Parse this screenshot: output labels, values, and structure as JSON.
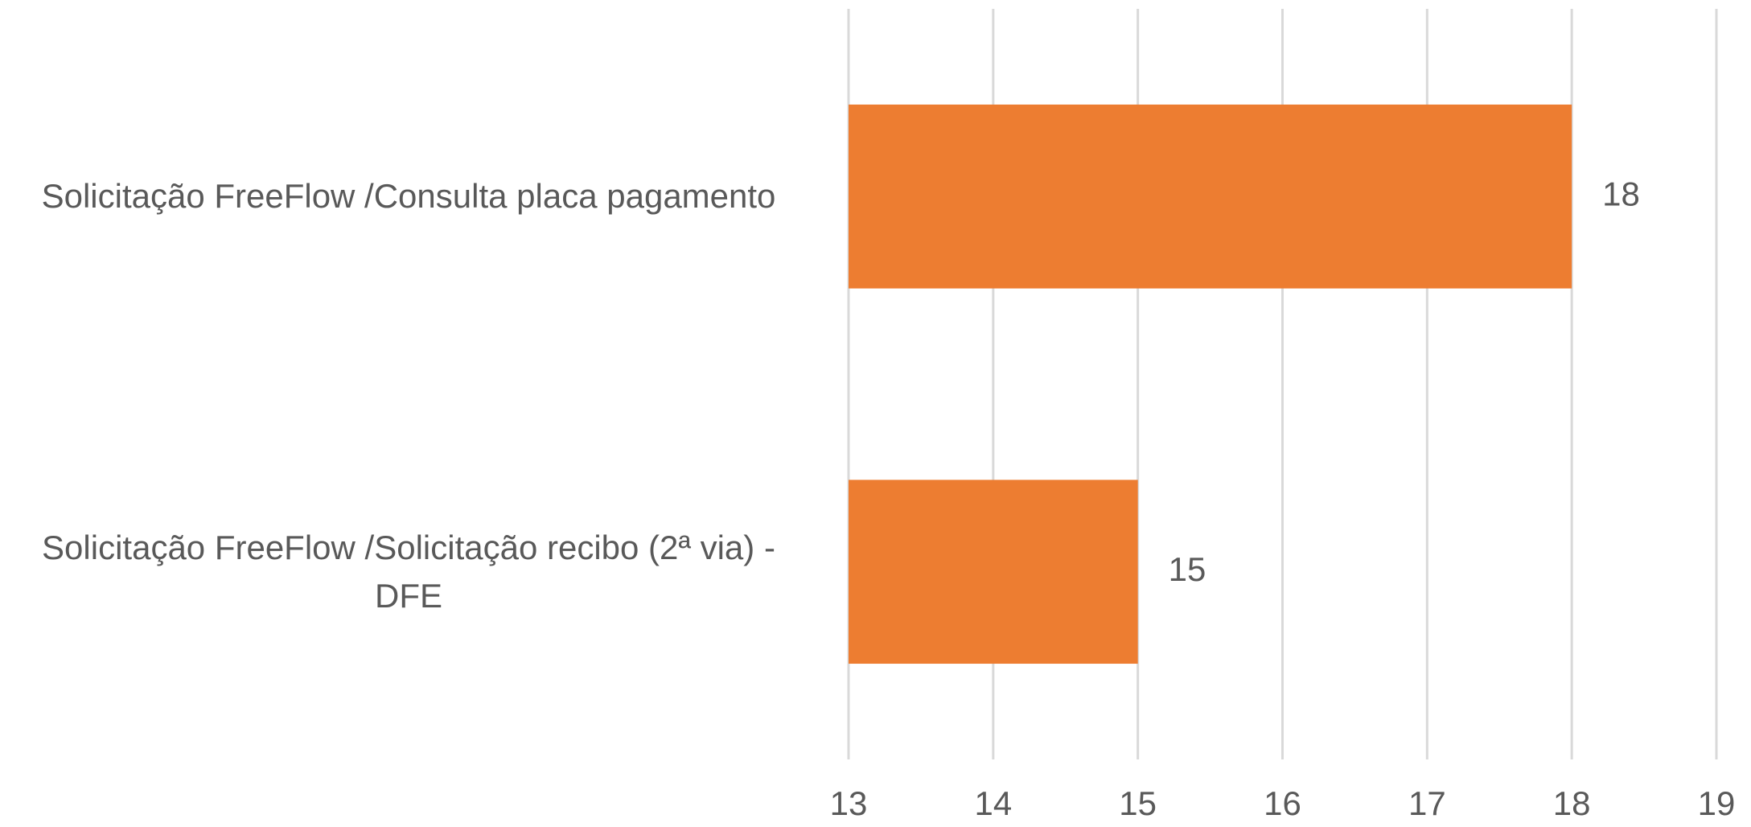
{
  "chart_data": {
    "type": "bar",
    "orientation": "horizontal",
    "categories": [
      "Solicitação FreeFlow /Consulta placa pagamento",
      "Solicitação FreeFlow /Solicitação recibo (2ª via) - DFE"
    ],
    "values": [
      18,
      15
    ],
    "color": "#ED7D31",
    "xlim": [
      13,
      19
    ],
    "xticks": [
      13,
      14,
      15,
      16,
      17,
      18,
      19
    ],
    "grid": true
  }
}
